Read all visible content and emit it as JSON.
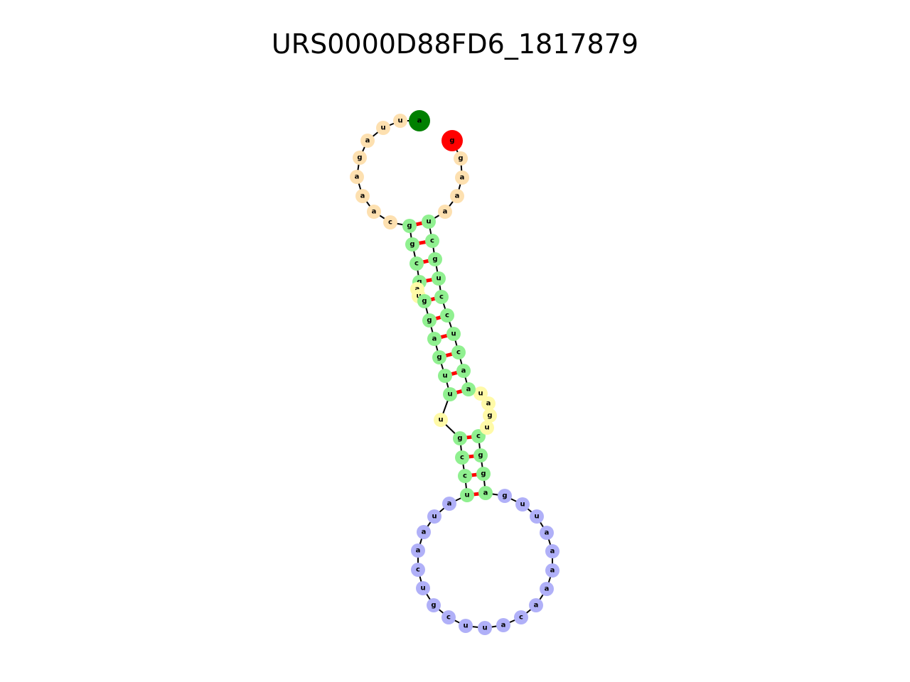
{
  "title": "URS0000D88FD6_1817879",
  "colors": {
    "background": "#ffffff",
    "backbone": "#000000",
    "pair_bond": "#ff0000",
    "start_nt": "#008000",
    "end_nt": "#ff0000",
    "stem": "#90f090",
    "external_loop": "#fde0b0",
    "interior_loop": "#fffaa8",
    "hairpin_loop": "#b0b0f8"
  },
  "nucleotides": [
    {
      "base": "a",
      "region": "start"
    },
    {
      "base": "u",
      "region": "external_loop"
    },
    {
      "base": "u",
      "region": "external_loop"
    },
    {
      "base": "a",
      "region": "external_loop"
    },
    {
      "base": "g",
      "region": "external_loop"
    },
    {
      "base": "a",
      "region": "external_loop"
    },
    {
      "base": "a",
      "region": "external_loop"
    },
    {
      "base": "a",
      "region": "external_loop"
    },
    {
      "base": "c",
      "region": "external_loop"
    },
    {
      "base": "g",
      "region": "stem"
    },
    {
      "base": "g",
      "region": "stem"
    },
    {
      "base": "c",
      "region": "stem"
    },
    {
      "base": "g",
      "region": "stem"
    },
    {
      "base": "a",
      "region": "interior_loop"
    },
    {
      "base": "u",
      "region": "interior_loop"
    },
    {
      "base": "g",
      "region": "stem"
    },
    {
      "base": "g",
      "region": "stem"
    },
    {
      "base": "a",
      "region": "stem"
    },
    {
      "base": "g",
      "region": "stem"
    },
    {
      "base": "u",
      "region": "stem"
    },
    {
      "base": "u",
      "region": "stem"
    },
    {
      "base": "u",
      "region": "interior_loop"
    },
    {
      "base": "g",
      "region": "stem"
    },
    {
      "base": "c",
      "region": "stem"
    },
    {
      "base": "c",
      "region": "stem"
    },
    {
      "base": "u",
      "region": "stem"
    },
    {
      "base": "a",
      "region": "hairpin_loop"
    },
    {
      "base": "u",
      "region": "hairpin_loop"
    },
    {
      "base": "a",
      "region": "hairpin_loop"
    },
    {
      "base": "a",
      "region": "hairpin_loop"
    },
    {
      "base": "c",
      "region": "hairpin_loop"
    },
    {
      "base": "u",
      "region": "hairpin_loop"
    },
    {
      "base": "g",
      "region": "hairpin_loop"
    },
    {
      "base": "c",
      "region": "hairpin_loop"
    },
    {
      "base": "u",
      "region": "hairpin_loop"
    },
    {
      "base": "u",
      "region": "hairpin_loop"
    },
    {
      "base": "a",
      "region": "hairpin_loop"
    },
    {
      "base": "c",
      "region": "hairpin_loop"
    },
    {
      "base": "a",
      "region": "hairpin_loop"
    },
    {
      "base": "a",
      "region": "hairpin_loop"
    },
    {
      "base": "a",
      "region": "hairpin_loop"
    },
    {
      "base": "a",
      "region": "hairpin_loop"
    },
    {
      "base": "a",
      "region": "hairpin_loop"
    },
    {
      "base": "u",
      "region": "hairpin_loop"
    },
    {
      "base": "u",
      "region": "hairpin_loop"
    },
    {
      "base": "g",
      "region": "hairpin_loop"
    },
    {
      "base": "a",
      "region": "stem"
    },
    {
      "base": "g",
      "region": "stem"
    },
    {
      "base": "g",
      "region": "stem"
    },
    {
      "base": "c",
      "region": "stem"
    },
    {
      "base": "u",
      "region": "interior_loop"
    },
    {
      "base": "g",
      "region": "interior_loop"
    },
    {
      "base": "a",
      "region": "interior_loop"
    },
    {
      "base": "u",
      "region": "interior_loop"
    },
    {
      "base": "a",
      "region": "stem"
    },
    {
      "base": "a",
      "region": "stem"
    },
    {
      "base": "c",
      "region": "stem"
    },
    {
      "base": "u",
      "region": "stem"
    },
    {
      "base": "c",
      "region": "stem"
    },
    {
      "base": "c",
      "region": "stem"
    },
    {
      "base": "u",
      "region": "stem"
    },
    {
      "base": "g",
      "region": "stem"
    },
    {
      "base": "c",
      "region": "stem"
    },
    {
      "base": "u",
      "region": "stem"
    },
    {
      "base": "a",
      "region": "external_loop"
    },
    {
      "base": "a",
      "region": "external_loop"
    },
    {
      "base": "a",
      "region": "external_loop"
    },
    {
      "base": "g",
      "region": "external_loop"
    },
    {
      "base": "g",
      "region": "end"
    }
  ],
  "pairs": [
    [
      10,
      64
    ],
    [
      11,
      63
    ],
    [
      12,
      62
    ],
    [
      13,
      61
    ],
    [
      16,
      60
    ],
    [
      17,
      59
    ],
    [
      18,
      58
    ],
    [
      19,
      57
    ],
    [
      20,
      56
    ],
    [
      21,
      55
    ],
    [
      23,
      50
    ],
    [
      24,
      49
    ],
    [
      25,
      48
    ],
    [
      26,
      47
    ]
  ]
}
